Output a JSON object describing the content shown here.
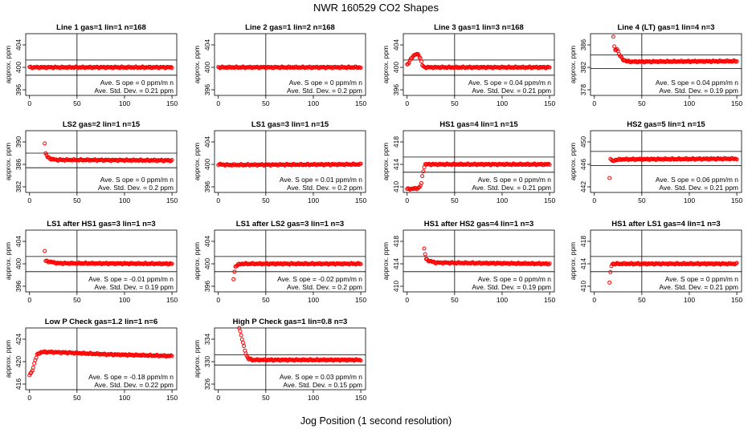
{
  "title": "NWR  160529  CO2 Shapes",
  "xlabel": "Jog Position (1 second resolution)",
  "colors": {
    "points": "#ff0000",
    "lines": "#000000",
    "background": "#ffffff"
  },
  "chart_data": [
    {
      "type": "scatter",
      "title": "Line 1 gas=1 lin=1 n=168",
      "ylabel": "approx. ppm",
      "yticks": [
        396,
        400,
        404
      ],
      "ylim": [
        395,
        406
      ],
      "xticks": [
        0,
        50,
        100,
        150
      ],
      "xlim": [
        -4,
        155
      ],
      "hlines": [
        401.3,
        398.6
      ],
      "vline": 50,
      "stats": [
        "Ave. S ope =  0   ppm/m n",
        "Ave. Std. Dev. =  0.21  ppm"
      ],
      "series": [
        {
          "x_start": 0,
          "x_end": 150,
          "points": [
            [
              0,
              400
            ],
            [
              150,
              400
            ]
          ]
        }
      ]
    },
    {
      "type": "scatter",
      "title": "Line 2 gas=1 lin=2 n=168",
      "ylabel": "approx. ppm",
      "yticks": [
        396,
        400,
        404
      ],
      "ylim": [
        395,
        406
      ],
      "xticks": [
        0,
        50,
        100,
        150
      ],
      "xlim": [
        -4,
        155
      ],
      "hlines": [],
      "vline": 50,
      "stats": [
        "Ave. S ope =  0   ppm/m n",
        "Ave. Std. Dev. =  0.2   ppm"
      ],
      "series": [
        {
          "x_start": 0,
          "x_end": 150,
          "points": [
            [
              0,
              400
            ],
            [
              150,
              400
            ]
          ]
        }
      ]
    },
    {
      "type": "scatter",
      "title": "Line 3 gas=1 lin=3 n=168",
      "ylabel": "approx. ppm",
      "yticks": [
        396,
        400,
        404
      ],
      "ylim": [
        395,
        406
      ],
      "xticks": [
        0,
        50,
        100,
        150
      ],
      "xlim": [
        -4,
        155
      ],
      "hlines": [
        401.3,
        398.6
      ],
      "vline": 50,
      "stats": [
        "Ave. S ope =  0.04   ppm/m n",
        "Ave. Std. Dev. =  0.21   ppm"
      ],
      "series": [
        {
          "x_start": 0,
          "x_end": 150,
          "points": [
            [
              0,
              400.5
            ],
            [
              2,
              400.8
            ],
            [
              4,
              401.5
            ],
            [
              6,
              402.0
            ],
            [
              9,
              402.3
            ],
            [
              12,
              402.3
            ],
            [
              14,
              401.6
            ],
            [
              16,
              400.4
            ],
            [
              18,
              400.0
            ],
            [
              30,
              400.0
            ],
            [
              150,
              400.0
            ]
          ]
        }
      ]
    },
    {
      "type": "scatter",
      "title": "Line 4 (LT) gas=1 lin=4 n=3",
      "ylabel": "approx. ppm",
      "yticks": [
        378,
        382,
        386
      ],
      "ylim": [
        377,
        388
      ],
      "xticks": [
        0,
        50,
        100,
        150
      ],
      "xlim": [
        -4,
        155
      ],
      "hlines": [
        384.2,
        381.8
      ],
      "vline": 50,
      "stats": [
        "Ave. S ope =  0.04   ppm/m n",
        "Ave. Std. Dev. =  0.19   ppm"
      ],
      "series": [
        {
          "x_start": 20,
          "x_end": 150,
          "points": [
            [
              20,
              387.5
            ],
            [
              21,
              385.6
            ],
            [
              22,
              385.0
            ],
            [
              24,
              385.3
            ],
            [
              26,
              384.4
            ],
            [
              28,
              383.8
            ],
            [
              30,
              383.4
            ],
            [
              34,
              383.1
            ],
            [
              40,
              383.0
            ],
            [
              150,
              383.1
            ]
          ]
        }
      ]
    },
    {
      "type": "scatter",
      "title": "LS2 gas=2 lin=1 n=15",
      "ylabel": "approx. ppm",
      "yticks": [
        382,
        386,
        390
      ],
      "ylim": [
        381,
        392
      ],
      "xticks": [
        0,
        50,
        100,
        150
      ],
      "xlim": [
        -4,
        155
      ],
      "hlines": [
        388.0,
        385.4
      ],
      "vline": 50,
      "stats": [
        "Ave. S ope =  0   ppm/m n",
        "Ave. Std. Dev. =  0.2   ppm"
      ],
      "series": [
        {
          "x_start": 16,
          "x_end": 150,
          "points": [
            [
              16,
              389.8
            ],
            [
              17,
              387.9
            ],
            [
              19,
              387.3
            ],
            [
              22,
              387.0
            ],
            [
              28,
              386.8
            ],
            [
              150,
              386.7
            ]
          ]
        }
      ]
    },
    {
      "type": "scatter",
      "title": "LS1 gas=3 lin=1 n=15",
      "ylabel": "approx. ppm",
      "yticks": [
        396,
        400,
        404
      ],
      "ylim": [
        395,
        406
      ],
      "xticks": [
        0,
        50,
        100,
        150
      ],
      "xlim": [
        -4,
        155
      ],
      "hlines": [],
      "vline": 50,
      "stats": [
        "Ave. S ope =  0.01   ppm/m n",
        "Ave. Std. Dev. =  0.2   ppm"
      ],
      "series": [
        {
          "x_start": 0,
          "x_end": 150,
          "points": [
            [
              0,
              400.0
            ],
            [
              10,
              399.9
            ],
            [
              150,
              400.0
            ]
          ]
        }
      ]
    },
    {
      "type": "scatter",
      "title": "HS1 gas=4 lin=1 n=15",
      "ylabel": "approx. ppm",
      "yticks": [
        410,
        414,
        418
      ],
      "ylim": [
        409,
        420
      ],
      "xticks": [
        0,
        50,
        100,
        150
      ],
      "xlim": [
        -4,
        155
      ],
      "hlines": [
        415.3,
        412.6
      ],
      "vline": 50,
      "stats": [
        "Ave. S ope =  0   ppm/m n",
        "Ave. Std. Dev. =  0.21   ppm"
      ],
      "series": [
        {
          "x_start": 0,
          "x_end": 150,
          "points": [
            [
              0,
              409.6
            ],
            [
              10,
              409.7
            ],
            [
              13,
              409.9
            ],
            [
              15,
              410.6
            ],
            [
              16,
              411.8
            ],
            [
              17,
              412.8
            ],
            [
              18,
              413.6
            ],
            [
              19,
              414.0
            ],
            [
              150,
              414.0
            ]
          ]
        }
      ]
    },
    {
      "type": "scatter",
      "title": "HS2 gas=5 lin=1 n=15",
      "ylabel": "approx. ppm",
      "yticks": [
        442,
        446,
        450
      ],
      "ylim": [
        441,
        452
      ],
      "xticks": [
        0,
        50,
        100,
        150
      ],
      "xlim": [
        -4,
        155
      ],
      "hlines": [
        448.3,
        445.8
      ],
      "vline": 50,
      "stats": [
        "Ave. S ope =  0.06   ppm/m n",
        "Ave. Std. Dev. =  0.21   ppm"
      ],
      "series": [
        {
          "x_start": 16,
          "x_end": 150,
          "points": [
            [
              16,
              443.6
            ],
            [
              17,
              447.1
            ],
            [
              19,
              446.5
            ],
            [
              22,
              446.8
            ],
            [
              30,
              446.9
            ],
            [
              150,
              447.0
            ]
          ]
        }
      ]
    },
    {
      "type": "scatter",
      "title": "LS1 after HS1 gas=3 lin=1 n=3",
      "ylabel": "approx. ppm",
      "yticks": [
        396,
        400,
        404
      ],
      "ylim": [
        395,
        406
      ],
      "xticks": [
        0,
        50,
        100,
        150
      ],
      "xlim": [
        -4,
        155
      ],
      "hlines": [
        401.3,
        398.6
      ],
      "vline": 50,
      "stats": [
        "Ave. S ope =  -0.01   ppm/m n",
        "Ave. Std. Dev. =  0.19   ppm"
      ],
      "series": [
        {
          "x_start": 16,
          "x_end": 150,
          "points": [
            [
              16,
              402.3
            ],
            [
              17,
              400.5
            ],
            [
              20,
              400.4
            ],
            [
              30,
              400.1
            ],
            [
              150,
              400.0
            ]
          ]
        }
      ]
    },
    {
      "type": "scatter",
      "title": "LS1 after LS2 gas=3 lin=1 n=3",
      "ylabel": "approx. ppm",
      "yticks": [
        396,
        400,
        404
      ],
      "ylim": [
        395,
        406
      ],
      "xticks": [
        0,
        50,
        100,
        150
      ],
      "xlim": [
        -4,
        155
      ],
      "hlines": [
        401.3,
        398.6
      ],
      "vline": 50,
      "stats": [
        "Ave. S ope =  -0.02   ppm/m n",
        "Ave. Std. Dev. =  0.2   ppm"
      ],
      "series": [
        {
          "x_start": 16,
          "x_end": 150,
          "points": [
            [
              16,
              397.3
            ],
            [
              17,
              398.6
            ],
            [
              18,
              399.5
            ],
            [
              20,
              399.8
            ],
            [
              25,
              400.0
            ],
            [
              150,
              400.0
            ]
          ]
        }
      ]
    },
    {
      "type": "scatter",
      "title": "HS1 after HS2 gas=4 lin=1 n=3",
      "ylabel": "approx. ppm",
      "yticks": [
        410,
        414,
        418
      ],
      "ylim": [
        409,
        420
      ],
      "xticks": [
        0,
        50,
        100,
        150
      ],
      "xlim": [
        -4,
        155
      ],
      "hlines": [
        415.3,
        412.6
      ],
      "vline": 50,
      "stats": [
        "Ave. S ope =  0   ppm/m n",
        "Ave. Std. Dev. =  0.19   ppm"
      ],
      "series": [
        {
          "x_start": 18,
          "x_end": 150,
          "points": [
            [
              18,
              416.7
            ],
            [
              20,
              414.8
            ],
            [
              22,
              414.6
            ],
            [
              30,
              414.2
            ],
            [
              150,
              414.0
            ]
          ]
        }
      ]
    },
    {
      "type": "scatter",
      "title": "HS1 after LS1 gas=4 lin=1 n=3",
      "ylabel": "approx. ppm",
      "yticks": [
        410,
        414,
        418
      ],
      "ylim": [
        409,
        420
      ],
      "xticks": [
        0,
        50,
        100,
        150
      ],
      "xlim": [
        -4,
        155
      ],
      "hlines": [
        415.3,
        412.6
      ],
      "vline": 50,
      "stats": [
        "Ave. S ope =  0   ppm/m n",
        "Ave. Std. Dev. =  0.21   ppm"
      ],
      "series": [
        {
          "x_start": 16,
          "x_end": 150,
          "points": [
            [
              16,
              410.6
            ],
            [
              17,
              412.4
            ],
            [
              18,
              413.6
            ],
            [
              19,
              414.0
            ],
            [
              150,
              414.0
            ]
          ]
        }
      ]
    },
    {
      "type": "scatter",
      "title": "Low P Check gas=1.2 lin=1 n=6",
      "ylabel": "approx. ppm",
      "yticks": [
        416,
        420,
        424
      ],
      "ylim": [
        415,
        426
      ],
      "xticks": [
        0,
        50,
        100,
        150
      ],
      "xlim": [
        -4,
        155
      ],
      "hlines": [],
      "vline": 50,
      "stats": [
        "Ave. S ope =  -0.18   ppm/m n",
        "Ave. Std. Dev. =  0.22   ppm"
      ],
      "series": [
        {
          "x_start": 0,
          "x_end": 150,
          "points": [
            [
              0,
              417.6
            ],
            [
              2,
              418.0
            ],
            [
              4,
              419.0
            ],
            [
              6,
              420.3
            ],
            [
              8,
              421.2
            ],
            [
              12,
              421.7
            ],
            [
              20,
              421.7
            ],
            [
              40,
              421.6
            ],
            [
              80,
              421.3
            ],
            [
              150,
              421.0
            ]
          ]
        }
      ]
    },
    {
      "type": "scatter",
      "title": "High P Check gas=1 lin=0.8 n=3",
      "ylabel": "approx. ppm",
      "yticks": [
        326,
        330,
        334
      ],
      "ylim": [
        325,
        336
      ],
      "xticks": [
        0,
        50,
        100,
        150
      ],
      "xlim": [
        -4,
        155
      ],
      "hlines": [
        331.2,
        329.4
      ],
      "vline": 50,
      "stats": [
        "Ave. S ope =  0.03   ppm/m n",
        "Ave. Std. Dev. =  0.15   ppm"
      ],
      "series": [
        {
          "x_start": 22,
          "x_end": 150,
          "points": [
            [
              22,
              336.0
            ],
            [
              24,
              334.8
            ],
            [
              26,
              333.3
            ],
            [
              28,
              332.0
            ],
            [
              30,
              331.0
            ],
            [
              32,
              330.5
            ],
            [
              36,
              330.3
            ],
            [
              150,
              330.3
            ]
          ]
        }
      ]
    }
  ]
}
